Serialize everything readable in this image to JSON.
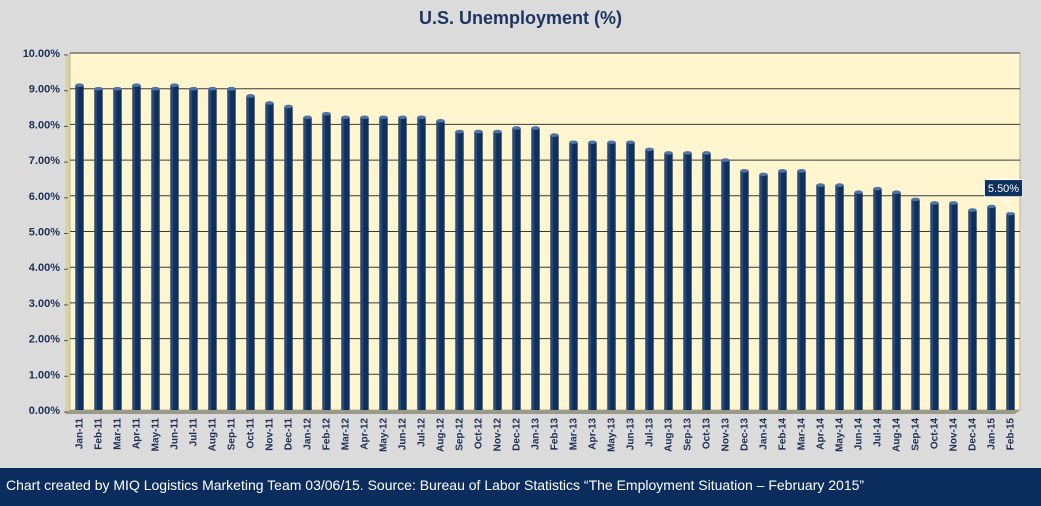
{
  "header": {
    "title": "U.S. Unemployment (%)"
  },
  "footer": {
    "text": "Chart created by MIQ Logistics Marketing Team 03/06/15. Source: Bureau of Labor Statistics “The Employment Situation – February 2015”"
  },
  "colors": {
    "bar": "#0f2f5c",
    "bar_highlight": "#3d5f8c",
    "plot_bg": "#fff5cf",
    "footer_bg": "#0b2d5e",
    "title": "#1c3664"
  },
  "chart_data": {
    "type": "bar",
    "title": "U.S. Unemployment (%)",
    "xlabel": "",
    "ylabel": "",
    "ylim": [
      0,
      10
    ],
    "yticks": [
      "0.00%",
      "1.00%",
      "2.00%",
      "3.00%",
      "4.00%",
      "5.00%",
      "6.00%",
      "7.00%",
      "8.00%",
      "9.00%",
      "10.00%"
    ],
    "grid": true,
    "categories": [
      "Jan-11",
      "Feb-11",
      "Mar-11",
      "Apr-11",
      "May-11",
      "Jun-11",
      "Jul-11",
      "Aug-11",
      "Sep-11",
      "Oct-11",
      "Nov-11",
      "Dec-11",
      "Jan-12",
      "Feb-12",
      "Mar-12",
      "Apr-12",
      "May-12",
      "Jun-12",
      "Jul-12",
      "Aug-12",
      "Sep-12",
      "Oct-12",
      "Nov-12",
      "Dec-12",
      "Jan-13",
      "Feb-13",
      "Mar-13",
      "Apr-13",
      "May-13",
      "Jun-13",
      "Jul-13",
      "Aug-13",
      "Sep-13",
      "Oct-13",
      "Nov-13",
      "Dec-13",
      "Jan-14",
      "Feb-14",
      "Mar-14",
      "Apr-14",
      "May-14",
      "Jun-14",
      "Jul-14",
      "Aug-14",
      "Sep-14",
      "Oct-14",
      "Nov-14",
      "Dec-14",
      "Jan-15",
      "Feb-15"
    ],
    "values": [
      9.1,
      9.0,
      9.0,
      9.1,
      9.0,
      9.1,
      9.0,
      9.0,
      9.0,
      8.8,
      8.6,
      8.5,
      8.2,
      8.3,
      8.2,
      8.2,
      8.2,
      8.2,
      8.2,
      8.1,
      7.8,
      7.8,
      7.8,
      7.9,
      7.9,
      7.7,
      7.5,
      7.5,
      7.5,
      7.5,
      7.3,
      7.2,
      7.2,
      7.2,
      7.0,
      6.7,
      6.6,
      6.7,
      6.7,
      6.3,
      6.3,
      6.1,
      6.2,
      6.1,
      5.9,
      5.8,
      5.8,
      5.6,
      5.7,
      5.5
    ],
    "data_labels": [
      {
        "category": "Feb-15",
        "text": "5.50%"
      }
    ]
  }
}
